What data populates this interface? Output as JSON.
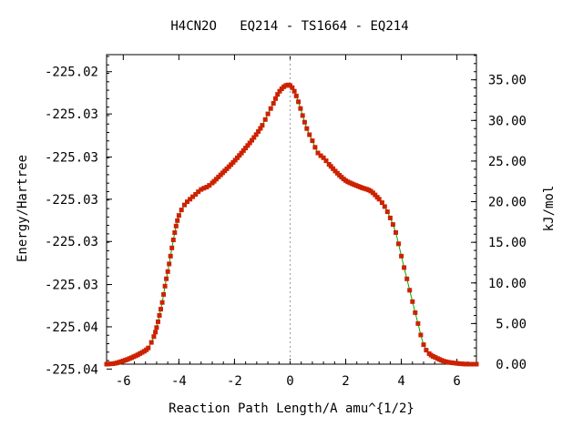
{
  "chart_data": {
    "type": "line",
    "title": "H4CN2O   EQ214 - TS1664 - EQ214",
    "xlabel": "Reaction Path Length/A amu^{1/2}",
    "ylabel": "Energy/Hartree",
    "y2label": "kJ/mol",
    "xlim": [
      -6.6,
      6.7
    ],
    "ylim_kj": [
      0,
      38.1
    ],
    "x_ticks": [
      -6,
      -4,
      -2,
      0,
      2,
      4,
      6
    ],
    "x_tick_labels": [
      "-6",
      "-4",
      "-2",
      "0",
      "2",
      "4",
      "6"
    ],
    "y_tick_labels": [
      "-225.02",
      "-225.03",
      "-225.03",
      "-225.03",
      "-225.03",
      "-225.03",
      "-225.04",
      "-225.04"
    ],
    "y_ticks_kj": [
      36.0,
      30.8,
      25.5,
      20.3,
      15.1,
      9.8,
      4.6,
      -0.6
    ],
    "y2_ticks": [
      0,
      5,
      10,
      15,
      20,
      25,
      30,
      35
    ],
    "y2_tick_labels": [
      "0.00",
      "5.00",
      "10.00",
      "15.00",
      "20.00",
      "25.00",
      "30.00",
      "35.00"
    ],
    "grid": false,
    "ts_marker_x": 0,
    "series": [
      {
        "line_color": "#00aa00",
        "marker_color": "#cc2200",
        "x": [
          -6.6,
          -6.3,
          -6.0,
          -5.7,
          -5.4,
          -5.1,
          -4.9,
          -4.8,
          -4.7,
          -4.6,
          -4.5,
          -4.4,
          -4.3,
          -4.2,
          -4.1,
          -4.0,
          -3.8,
          -3.6,
          -3.4,
          -3.2,
          -3.0,
          -2.8,
          -2.5,
          -2.2,
          -1.9,
          -1.6,
          -1.3,
          -1.0,
          -0.8,
          -0.6,
          -0.45,
          -0.3,
          -0.15,
          0.0,
          0.15,
          0.3,
          0.45,
          0.6,
          0.8,
          1.0,
          1.2,
          1.4,
          1.7,
          2.0,
          2.3,
          2.6,
          2.9,
          3.2,
          3.4,
          3.6,
          3.8,
          4.0,
          4.2,
          4.4,
          4.6,
          4.8,
          5.0,
          5.3,
          5.6,
          6.0,
          6.4,
          6.7
        ],
        "y": [
          0.0,
          0.1,
          0.4,
          0.8,
          1.3,
          2.0,
          3.4,
          4.5,
          6.0,
          7.6,
          9.6,
          11.4,
          13.3,
          15.3,
          17.0,
          18.3,
          19.6,
          20.3,
          20.9,
          21.5,
          21.8,
          22.3,
          23.3,
          24.3,
          25.4,
          26.6,
          27.9,
          29.4,
          30.8,
          32.1,
          33.2,
          33.9,
          34.3,
          34.3,
          33.6,
          32.3,
          30.6,
          29.0,
          27.5,
          26.0,
          25.4,
          24.6,
          23.5,
          22.6,
          22.1,
          21.7,
          21.3,
          20.3,
          19.4,
          18.0,
          16.2,
          13.3,
          10.5,
          7.7,
          5.0,
          2.4,
          1.3,
          0.7,
          0.3,
          0.1,
          0.0,
          0.0
        ]
      }
    ]
  }
}
